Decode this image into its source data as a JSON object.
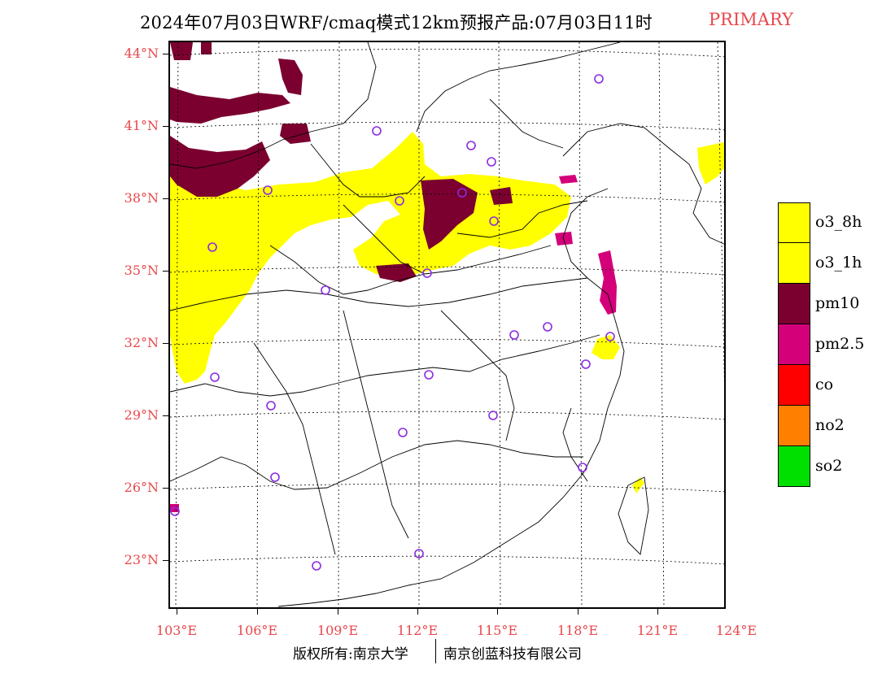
{
  "title": {
    "main": "2024年07月03日WRF/cmaq模式12km预报产品:07月03日11时",
    "tag": "PRIMARY"
  },
  "lat_labels": [
    "44°N",
    "41°N",
    "38°N",
    "35°N",
    "32°N",
    "29°N",
    "26°N",
    "23°N"
  ],
  "lon_labels": [
    "103°E",
    "106°E",
    "109°E",
    "112°E",
    "115°E",
    "118°E",
    "121°E",
    "124°E"
  ],
  "legend": {
    "items": [
      {
        "label": "o3_8h",
        "color": "#ffff00"
      },
      {
        "label": "o3_1h",
        "color": "#ffff00"
      },
      {
        "label": "pm10",
        "color": "#7b0030"
      },
      {
        "label": "pm2.5",
        "color": "#d4007a"
      },
      {
        "label": "co",
        "color": "#ff0000"
      },
      {
        "label": "no2",
        "color": "#ff7f00"
      },
      {
        "label": "so2",
        "color": "#00e000"
      }
    ]
  },
  "colors": {
    "label_red": "#e8474b",
    "o3": "#ffff00",
    "pm10": "#7b0030",
    "pm25": "#d4007a",
    "station_circle": "#8a2be2"
  },
  "footer": {
    "copyright_left": "版权所有:南京大学",
    "copyright_right": "南京创蓝科技有限公司"
  }
}
